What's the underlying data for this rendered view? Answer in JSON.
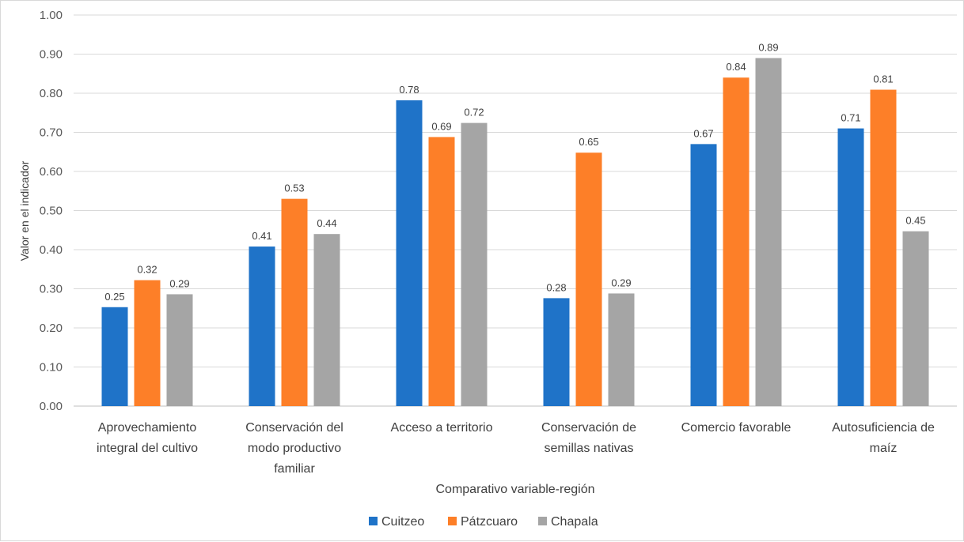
{
  "chart_data": {
    "type": "bar",
    "title": "",
    "xlabel": "Comparativo variable-región",
    "ylabel": "Valor en el indicador",
    "ylim": [
      0,
      1.0
    ],
    "yticks": [
      0.0,
      0.1,
      0.2,
      0.3,
      0.4,
      0.5,
      0.6,
      0.7,
      0.8,
      0.9,
      1.0
    ],
    "ytick_labels": [
      "0.00",
      "0.10",
      "0.20",
      "0.30",
      "0.40",
      "0.50",
      "0.60",
      "0.70",
      "0.80",
      "0.90",
      "1.00"
    ],
    "grid": true,
    "legend_position": "bottom",
    "categories": [
      [
        "Aprovechamiento",
        "integral del cultivo"
      ],
      [
        "Conservación del",
        "modo productivo",
        "familiar"
      ],
      [
        "Acceso a territorio"
      ],
      [
        "Conservación de",
        "semillas nativas"
      ],
      [
        "Comercio favorable"
      ],
      [
        "Autosuficiencia de",
        "maíz"
      ]
    ],
    "series": [
      {
        "name": "Cuitzeo",
        "color": "#1f73c8",
        "values": [
          0.253,
          0.408,
          0.782,
          0.276,
          0.67,
          0.71
        ],
        "labels": [
          "0.25",
          "0.41",
          "0.78",
          "0.28",
          "0.67",
          "0.71"
        ]
      },
      {
        "name": "Pátzcuaro",
        "color": "#fd7f28",
        "values": [
          0.322,
          0.53,
          0.688,
          0.648,
          0.84,
          0.809
        ],
        "labels": [
          "0.32",
          "0.53",
          "0.69",
          "0.65",
          "0.84",
          "0.81"
        ]
      },
      {
        "name": "Chapala",
        "color": "#a5a5a5",
        "values": [
          0.286,
          0.44,
          0.724,
          0.288,
          0.89,
          0.447
        ],
        "labels": [
          "0.29",
          "0.44",
          "0.72",
          "0.29",
          "0.89",
          "0.45"
        ]
      }
    ]
  }
}
